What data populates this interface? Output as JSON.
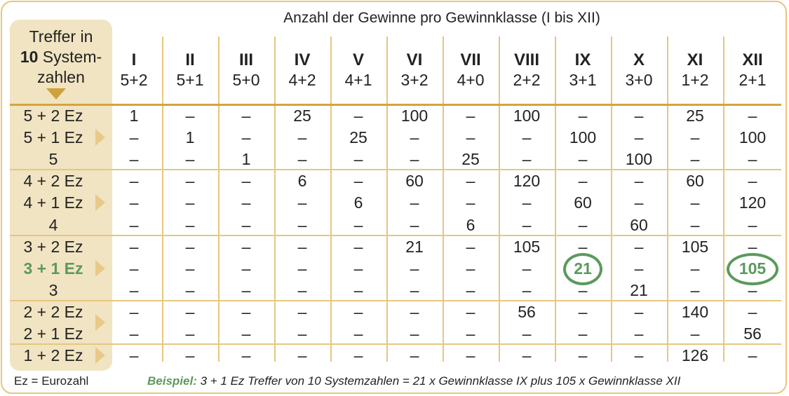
{
  "title": "Anzahl der Gewinne pro Gewinnklasse (I bis XII)",
  "left_header": {
    "line1": "Treffer in",
    "num": "10",
    "line2": " System-",
    "line3": "zahlen"
  },
  "columns": [
    {
      "roman": "I",
      "combo": "5+2"
    },
    {
      "roman": "II",
      "combo": "5+1"
    },
    {
      "roman": "III",
      "combo": "5+0"
    },
    {
      "roman": "IV",
      "combo": "4+2"
    },
    {
      "roman": "V",
      "combo": "4+1"
    },
    {
      "roman": "VI",
      "combo": "3+2"
    },
    {
      "roman": "VII",
      "combo": "4+0"
    },
    {
      "roman": "VIII",
      "combo": "2+2"
    },
    {
      "roman": "IX",
      "combo": "3+1"
    },
    {
      "roman": "X",
      "combo": "3+0"
    },
    {
      "roman": "XI",
      "combo": "1+2"
    },
    {
      "roman": "XII",
      "combo": "2+1"
    }
  ],
  "rows": [
    {
      "label": "5 + 2 Ez",
      "values": [
        "1",
        "–",
        "–",
        "25",
        "–",
        "100",
        "–",
        "100",
        "–",
        "–",
        "25",
        "–"
      ]
    },
    {
      "label": "5 + 1  Ez",
      "values": [
        "–",
        "1",
        "–",
        "–",
        "25",
        "–",
        "–",
        "–",
        "100",
        "–",
        "–",
        "100"
      ]
    },
    {
      "label": "5",
      "values": [
        "–",
        "–",
        "1",
        "–",
        "–",
        "–",
        "25",
        "–",
        "–",
        "100",
        "–",
        "–"
      ]
    },
    {
      "label": "4 + 2 Ez",
      "values": [
        "–",
        "–",
        "–",
        "6",
        "–",
        "60",
        "–",
        "120",
        "–",
        "–",
        "60",
        "–"
      ]
    },
    {
      "label": "4 + 1  Ez",
      "values": [
        "–",
        "–",
        "–",
        "–",
        "6",
        "–",
        "–",
        "–",
        "60",
        "–",
        "–",
        "120"
      ]
    },
    {
      "label": "4",
      "values": [
        "–",
        "–",
        "–",
        "–",
        "–",
        "–",
        "6",
        "–",
        "–",
        "60",
        "–",
        "–"
      ]
    },
    {
      "label": "3 + 2 Ez",
      "values": [
        "–",
        "–",
        "–",
        "–",
        "–",
        "21",
        "–",
        "105",
        "–",
        "–",
        "105",
        "–"
      ]
    },
    {
      "label": "3 + 1  Ez",
      "values": [
        "–",
        "–",
        "–",
        "–",
        "–",
        "–",
        "–",
        "–",
        "21",
        "–",
        "–",
        "105"
      ]
    },
    {
      "label": "3",
      "values": [
        "–",
        "–",
        "–",
        "–",
        "–",
        "–",
        "–",
        "–",
        "–",
        "21",
        "–",
        "–"
      ]
    },
    {
      "label": "2 + 2 Ez",
      "values": [
        "–",
        "–",
        "–",
        "–",
        "–",
        "–",
        "–",
        "56",
        "–",
        "–",
        "140",
        "–"
      ]
    },
    {
      "label": "2 + 1  Ez",
      "values": [
        "–",
        "–",
        "–",
        "–",
        "–",
        "–",
        "–",
        "–",
        "–",
        "–",
        "–",
        "56"
      ]
    },
    {
      "label": "1 + 2 Ez",
      "values": [
        "–",
        "–",
        "–",
        "–",
        "–",
        "–",
        "–",
        "–",
        "–",
        "–",
        "126",
        "–"
      ]
    }
  ],
  "footnote": "Ez = Eurozahl",
  "example": {
    "label": "Beispiel:",
    "text": " 3 + 1 Ez Treffer von 10 Systemzahlen = 21 x Gewinnklasse IX plus 105 x Gewinnklasse XII"
  },
  "colors": {
    "accent_gold": "#d4a43c",
    "panel": "#f1e4c2",
    "highlight_green": "#5a9a5c"
  }
}
